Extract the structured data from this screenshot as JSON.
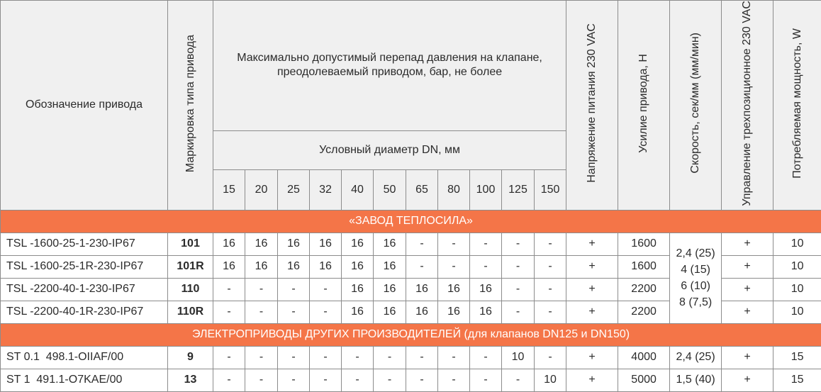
{
  "header": {
    "designation": "Обозначение привода",
    "marking": "Маркировка типа привода",
    "max_pressure": "Максимально допустимый перепад давления на клапане, преодолеваемый приводом, бар, не более",
    "dn_label": "Условный диаметр DN, мм",
    "dn_values": [
      "15",
      "20",
      "25",
      "32",
      "40",
      "50",
      "65",
      "80",
      "100",
      "125",
      "150"
    ],
    "voltage": "Напряжение питания 230 VAC",
    "force": "Усилие привода, Н",
    "speed": "Скорость, сек/мм (мм/мин)",
    "control": "Управление трехпозиционное 230 VAC",
    "power": "Потребляемая мощность, W"
  },
  "sections": [
    {
      "title": "«ЗАВОД ТЕПЛОСИЛА»",
      "rows": [
        {
          "designation": "TSL -1600-25-1-230-IP67",
          "marking": "101",
          "values": [
            "16",
            "16",
            "16",
            "16",
            "16",
            "16",
            "-",
            "-",
            "-",
            "-",
            "-"
          ],
          "voltage": "+",
          "force": "1600",
          "control": "+",
          "power": "10"
        },
        {
          "designation": "TSL -1600-25-1R-230-IP67",
          "marking": "101R",
          "values": [
            "16",
            "16",
            "16",
            "16",
            "16",
            "16",
            "-",
            "-",
            "-",
            "-",
            "-"
          ],
          "voltage": "+",
          "force": "1600",
          "control": "+",
          "power": "10"
        },
        {
          "designation": "TSL -2200-40-1-230-IP67",
          "marking": "110",
          "values": [
            "-",
            "-",
            "-",
            "-",
            "16",
            "16",
            "16",
            "16",
            "16",
            "-",
            "-"
          ],
          "voltage": "+",
          "force": "2200",
          "control": "+",
          "power": "10"
        },
        {
          "designation": "TSL -2200-40-1R-230-IP67",
          "marking": "110R",
          "values": [
            "-",
            "-",
            "-",
            "-",
            "16",
            "16",
            "16",
            "16",
            "16",
            "-",
            "-"
          ],
          "voltage": "+",
          "force": "2200",
          "control": "+",
          "power": "10"
        }
      ],
      "speed_merged": [
        "2,4 (25)",
        "4 (15)",
        "6 (10)",
        "8 (7,5)"
      ]
    },
    {
      "title": "ЭЛЕКТРОПРИВОДЫ ДРУГИХ ПРОИЗВОДИТЕЛЕЙ (для клапанов DN125 и DN150)",
      "rows": [
        {
          "designation": "ST 0.1  498.1-OIIAF/00",
          "marking": "9",
          "values": [
            "-",
            "-",
            "-",
            "-",
            "-",
            "-",
            "-",
            "-",
            "-",
            "10",
            "-"
          ],
          "voltage": "+",
          "force": "4000",
          "speed": "2,4 (25)",
          "control": "+",
          "power": "15"
        },
        {
          "designation": "ST 1  491.1-O7KAE/00",
          "marking": "13",
          "values": [
            "-",
            "-",
            "-",
            "-",
            "-",
            "-",
            "-",
            "-",
            "-",
            "-",
            "10"
          ],
          "voltage": "+",
          "force": "5000",
          "speed": "1,5 (40)",
          "control": "+",
          "power": "15"
        }
      ]
    }
  ]
}
